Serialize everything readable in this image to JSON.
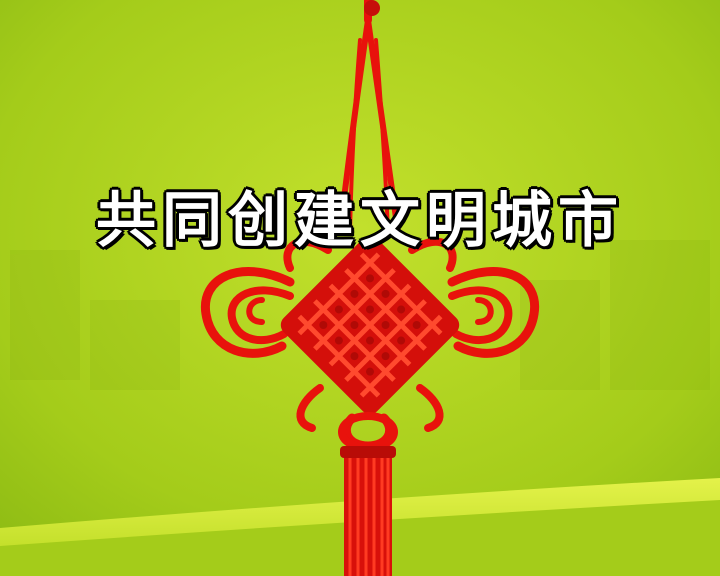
{
  "title": "共同创建文明城市",
  "colors": {
    "background": "#a6cf1c",
    "knot": "#e8120c",
    "band": "#cde83a"
  }
}
